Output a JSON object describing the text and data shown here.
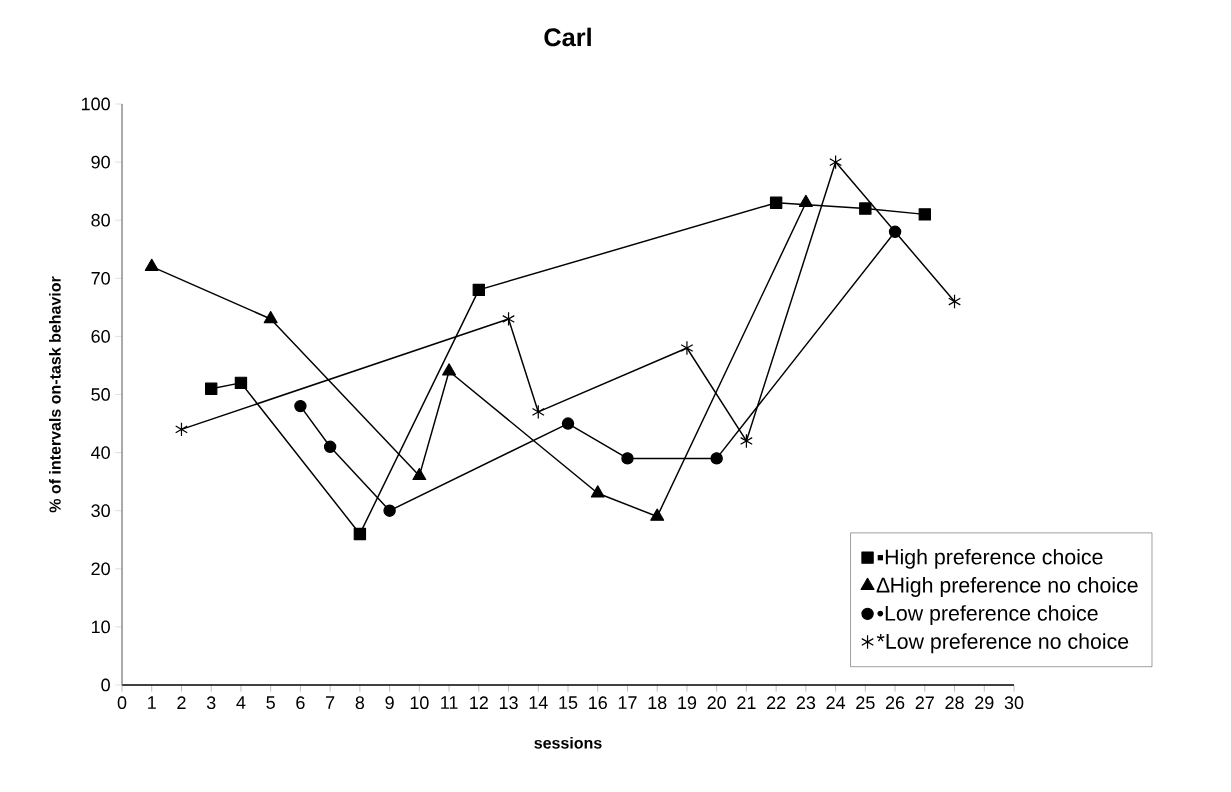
{
  "chart_data": {
    "type": "line",
    "title": "Carl",
    "xlabel": "sessions",
    "ylabel": "% of intervals on-task behavior",
    "series": [
      {
        "name": "▪High preference choice",
        "color": "#000000",
        "marker": "square",
        "x": [
          3,
          4,
          8,
          12,
          22,
          25,
          27
        ],
        "values": [
          51,
          52,
          26,
          68,
          83,
          82,
          81
        ]
      },
      {
        "name": "∆High preference no choice",
        "color": "#000000",
        "marker": "triangle",
        "x": [
          1,
          5,
          10,
          11,
          16,
          18,
          23
        ],
        "values": [
          72,
          63,
          36,
          54,
          33,
          29,
          83
        ]
      },
      {
        "name": "•Low preference choice",
        "color": "#000000",
        "marker": "circle",
        "x": [
          6,
          7,
          9,
          15,
          17,
          20,
          26
        ],
        "values": [
          48,
          41,
          30,
          45,
          39,
          39,
          78
        ]
      },
      {
        "name": "*Low preference no choice",
        "color": "#000000",
        "marker": "cross",
        "x": [
          2,
          13,
          14,
          19,
          21,
          24,
          28
        ],
        "values": [
          44,
          63,
          47,
          58,
          42,
          90,
          66
        ]
      }
    ],
    "xlim": [
      0,
      30
    ],
    "xticks": [
      0,
      1,
      2,
      3,
      4,
      5,
      6,
      7,
      8,
      9,
      10,
      11,
      12,
      13,
      14,
      15,
      16,
      17,
      18,
      19,
      20,
      21,
      22,
      23,
      24,
      25,
      26,
      27,
      28,
      29,
      30
    ],
    "ylim": [
      0,
      100
    ],
    "yticks": [
      0,
      10,
      20,
      30,
      40,
      50,
      60,
      70,
      80,
      90,
      100
    ],
    "grid": false,
    "legend": "bottom right",
    "line_style": "solid"
  }
}
